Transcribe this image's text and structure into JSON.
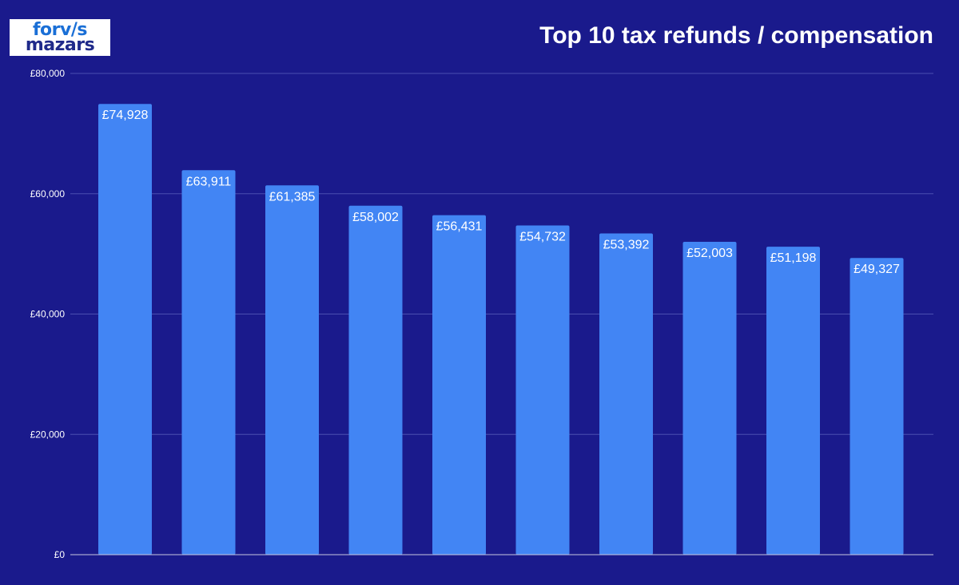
{
  "logo": {
    "line1": "forv/s",
    "line2": "mazars"
  },
  "colors": {
    "background": "#1a1a8c",
    "bar": "#4285f4",
    "gridline": "#4a4fb0",
    "baseline": "#c8c8e0",
    "text": "#ffffff"
  },
  "chart_data": {
    "type": "bar",
    "title": "Top 10 tax refunds / compensation",
    "xlabel": "",
    "ylabel": "",
    "categories": [
      "",
      "",
      "",
      "",
      "",
      "",
      "",
      "",
      "",
      ""
    ],
    "values": [
      74928,
      63911,
      61385,
      58002,
      56431,
      54732,
      53392,
      52003,
      51198,
      49327
    ],
    "data_labels": [
      "£74,928",
      "£63,911",
      "£61,385",
      "£58,002",
      "£56,431",
      "£54,732",
      "£53,392",
      "£52,003",
      "£51,198",
      "£49,327"
    ],
    "ylim": [
      0,
      80000
    ],
    "yticks": [
      0,
      20000,
      40000,
      60000,
      80000
    ],
    "ytick_labels": [
      "£0",
      "£20,000",
      "£40,000",
      "£60,000",
      "£80,000"
    ],
    "grid": true,
    "legend": "none"
  }
}
